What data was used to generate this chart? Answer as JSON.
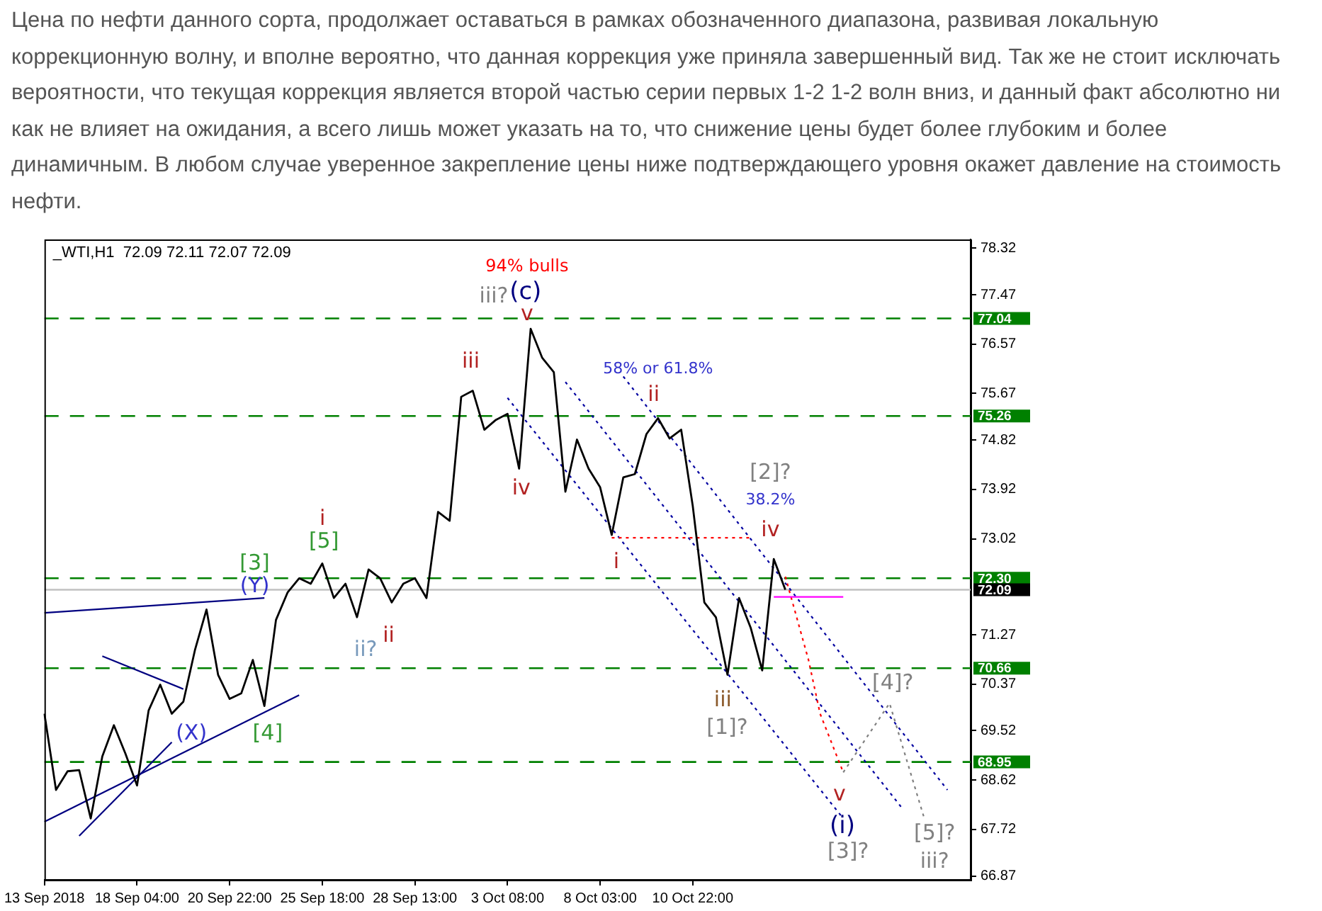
{
  "chart_data": {
    "type": "line",
    "subtitle": "Цена по нефти данного сорта, продолжает оставаться в рамках обозначенного диапазона, развивая локальную коррекционную волну, и вполне вероятно, что данная коррекция уже приняла завершенный вид. Так же не стоит исключать вероятности, что текущая коррекция является второй частью серии первых 1-2 1-2 волн вниз, и данный факт абсолютно ни как не влияет на ожидания, а всего лишь может указать на то, что снижение цены будет более глубоким и более динамичным. В любом случае уверенное закрепление цены ниже подтверждающего уровня окажет давление на стоимость нефти.",
    "title": "_WTI,H1  72.09 72.11 72.07 72.09",
    "categories": [
      "13 Sep 2018",
      null,
      null,
      null,
      null,
      null,
      null,
      null,
      "18 Sep 04:00",
      null,
      null,
      null,
      null,
      null,
      null,
      null,
      "20 Sep 22:00",
      null,
      null,
      null,
      null,
      null,
      null,
      null,
      "25 Sep 18:00",
      null,
      null,
      null,
      null,
      null,
      null,
      null,
      "28 Sep 13:00",
      null,
      null,
      null,
      null,
      null,
      null,
      null,
      "3 Oct 08:00",
      null,
      null,
      null,
      null,
      null,
      null,
      null,
      "8 Oct 03:00",
      null,
      null,
      null,
      null,
      null,
      null,
      null,
      "10 Oct 22:00",
      null,
      null,
      null,
      null,
      null,
      null,
      null,
      null,
      null,
      null,
      null,
      null,
      null,
      null,
      null,
      null,
      null,
      null,
      null,
      null,
      null,
      null,
      null,
      null
    ],
    "ylim": [
      66.8,
      78.48
    ],
    "yticks": [
      78.32,
      77.47,
      76.57,
      75.67,
      74.82,
      73.92,
      73.02,
      71.27,
      70.37,
      69.52,
      68.62,
      67.72,
      66.87
    ],
    "grid": false,
    "legend": false,
    "marker": "none",
    "line_style": "solid",
    "series": [
      {
        "color": "#000000",
        "values": [
          69.83,
          68.44,
          68.78,
          68.8,
          67.92,
          69.05,
          69.62,
          69.1,
          68.52,
          69.89,
          70.36,
          69.83,
          70.05,
          70.99,
          71.73,
          70.54,
          70.1,
          70.2,
          70.81,
          69.97,
          71.54,
          72.04,
          72.3,
          72.2,
          72.57,
          71.94,
          72.2,
          71.59,
          72.46,
          72.3,
          71.86,
          72.2,
          72.3,
          71.94,
          73.51,
          73.35,
          75.61,
          75.72,
          75.01,
          75.19,
          75.3,
          74.3,
          76.85,
          76.32,
          76.06,
          73.88,
          74.83,
          74.3,
          73.96,
          73.09,
          74.14,
          74.2,
          74.93,
          75.22,
          74.85,
          75.01,
          73.62,
          71.86,
          71.59,
          70.54,
          71.94,
          71.4,
          70.62,
          72.65,
          72.09,
          null,
          null,
          null,
          null,
          null,
          null,
          null,
          null,
          null,
          null,
          null,
          null,
          null,
          null,
          null,
          null
        ]
      },
      {
        "color": "#ff00ff",
        "values": [
          null,
          null,
          null,
          null,
          null,
          null,
          null,
          null,
          null,
          null,
          null,
          null,
          null,
          null,
          null,
          null,
          null,
          null,
          null,
          null,
          null,
          null,
          null,
          null,
          null,
          null,
          null,
          null,
          null,
          null,
          null,
          null,
          null,
          null,
          null,
          null,
          null,
          null,
          null,
          null,
          null,
          null,
          null,
          null,
          null,
          null,
          null,
          null,
          null,
          null,
          null,
          null,
          null,
          null,
          null,
          null,
          null,
          null,
          null,
          null,
          null,
          null,
          null,
          71.96,
          null,
          null,
          null,
          null,
          null,
          71.96,
          null,
          null,
          null,
          null,
          null,
          null,
          null,
          null,
          null,
          null,
          null
        ]
      },
      {
        "color": "#ff0000",
        "line_style": "dotted",
        "values": [
          null,
          null,
          null,
          null,
          null,
          null,
          null,
          null,
          null,
          null,
          null,
          null,
          null,
          null,
          null,
          null,
          null,
          null,
          null,
          null,
          null,
          null,
          null,
          null,
          null,
          null,
          null,
          null,
          null,
          null,
          null,
          null,
          null,
          null,
          null,
          null,
          null,
          null,
          null,
          null,
          null,
          null,
          null,
          null,
          null,
          null,
          null,
          null,
          null,
          73.04,
          null,
          null,
          null,
          null,
          null,
          null,
          null,
          null,
          null,
          null,
          null,
          73.04,
          null,
          null,
          null,
          null,
          null,
          null,
          null,
          null,
          null,
          null,
          null,
          null,
          null,
          null,
          null,
          null,
          null,
          null,
          null
        ]
      },
      {
        "color": "#ff0000",
        "line_style": "dotted",
        "values": [
          null,
          null,
          null,
          null,
          null,
          null,
          null,
          null,
          null,
          null,
          null,
          null,
          null,
          null,
          null,
          null,
          null,
          null,
          null,
          null,
          null,
          null,
          null,
          null,
          null,
          null,
          null,
          null,
          null,
          null,
          null,
          null,
          null,
          null,
          null,
          null,
          null,
          null,
          null,
          null,
          null,
          null,
          null,
          null,
          null,
          null,
          null,
          null,
          null,
          null,
          null,
          null,
          null,
          null,
          null,
          null,
          null,
          null,
          null,
          null,
          null,
          null,
          null,
          null,
          72.33,
          null,
          70.81,
          69.83,
          null,
          68.76,
          null,
          null,
          null,
          null,
          null,
          null,
          null,
          null,
          null,
          null,
          null
        ]
      },
      {
        "color": "#808080",
        "line_style": "dotted",
        "values": [
          null,
          null,
          null,
          null,
          null,
          null,
          null,
          null,
          null,
          null,
          null,
          null,
          null,
          null,
          null,
          null,
          null,
          null,
          null,
          null,
          null,
          null,
          null,
          null,
          null,
          null,
          null,
          null,
          null,
          null,
          null,
          null,
          null,
          null,
          null,
          null,
          null,
          null,
          null,
          null,
          null,
          null,
          null,
          null,
          null,
          null,
          null,
          null,
          null,
          null,
          null,
          null,
          null,
          null,
          null,
          null,
          null,
          null,
          null,
          null,
          null,
          null,
          null,
          null,
          null,
          null,
          null,
          null,
          null,
          68.76,
          null,
          null,
          null,
          70.02,
          null,
          null,
          67.92,
          null,
          null,
          null,
          null
        ]
      },
      {
        "color": "#0000a0",
        "line_style": "dotted",
        "values": [
          null,
          null,
          null,
          null,
          null,
          null,
          null,
          null,
          null,
          null,
          null,
          null,
          null,
          null,
          null,
          null,
          null,
          null,
          null,
          null,
          null,
          null,
          null,
          null,
          null,
          null,
          null,
          null,
          null,
          null,
          null,
          null,
          null,
          null,
          null,
          null,
          null,
          null,
          null,
          null,
          75.59,
          null,
          null,
          null,
          null,
          null,
          null,
          null,
          null,
          null,
          null,
          null,
          null,
          null,
          null,
          null,
          null,
          null,
          null,
          null,
          null,
          null,
          null,
          null,
          null,
          null,
          null,
          null,
          null,
          67.92,
          null,
          null,
          null,
          null,
          null,
          null,
          null,
          null,
          null,
          null,
          null
        ]
      },
      {
        "color": "#0000a0",
        "line_style": "dotted",
        "values": [
          null,
          null,
          null,
          null,
          null,
          null,
          null,
          null,
          null,
          null,
          null,
          null,
          null,
          null,
          null,
          null,
          null,
          null,
          null,
          null,
          null,
          null,
          null,
          null,
          null,
          null,
          null,
          null,
          null,
          null,
          null,
          null,
          null,
          null,
          null,
          null,
          null,
          null,
          null,
          null,
          null,
          null,
          null,
          null,
          null,
          75.88,
          null,
          null,
          null,
          null,
          null,
          null,
          null,
          null,
          null,
          null,
          null,
          null,
          null,
          null,
          null,
          null,
          null,
          null,
          null,
          null,
          null,
          null,
          null,
          null,
          null,
          null,
          null,
          null,
          68.13,
          null,
          null,
          null,
          null,
          null,
          null
        ]
      },
      {
        "color": "#0000a0",
        "line_style": "dotted",
        "values": [
          null,
          null,
          null,
          null,
          null,
          null,
          null,
          null,
          null,
          null,
          null,
          null,
          null,
          null,
          null,
          null,
          null,
          null,
          null,
          null,
          null,
          null,
          null,
          null,
          null,
          null,
          null,
          null,
          null,
          null,
          null,
          null,
          null,
          null,
          null,
          null,
          null,
          null,
          null,
          null,
          null,
          null,
          null,
          null,
          null,
          null,
          null,
          null,
          null,
          null,
          75.98,
          null,
          null,
          null,
          null,
          null,
          null,
          null,
          null,
          null,
          null,
          null,
          null,
          null,
          null,
          null,
          null,
          null,
          null,
          null,
          null,
          null,
          null,
          null,
          null,
          null,
          null,
          null,
          68.44,
          null,
          null
        ]
      },
      {
        "color": "#000080",
        "values": [
          71.67,
          null,
          null,
          null,
          null,
          null,
          null,
          null,
          null,
          null,
          null,
          null,
          null,
          null,
          null,
          null,
          null,
          null,
          null,
          71.94,
          null,
          null,
          null,
          null,
          null,
          null,
          null,
          null,
          null,
          null,
          null,
          null,
          null,
          null,
          null,
          null,
          null,
          null,
          null,
          null,
          null,
          null,
          null,
          null,
          null,
          null,
          null,
          null,
          null,
          null,
          null,
          null,
          null,
          null,
          null,
          null,
          null,
          null,
          null,
          null,
          null,
          null,
          null,
          null,
          null,
          null,
          null,
          null,
          null,
          null,
          null,
          null,
          null,
          null,
          null,
          null,
          null,
          null,
          null,
          null,
          null
        ]
      },
      {
        "color": "#000080",
        "values": [
          null,
          null,
          null,
          null,
          null,
          70.88,
          null,
          null,
          null,
          null,
          null,
          null,
          70.28,
          null,
          null,
          null,
          null,
          null,
          null,
          null,
          null,
          null,
          null,
          null,
          null,
          null,
          null,
          null,
          null,
          null,
          null,
          null,
          null,
          null,
          null,
          null,
          null,
          null,
          null,
          null,
          null,
          null,
          null,
          null,
          null,
          null,
          null,
          null,
          null,
          null,
          null,
          null,
          null,
          null,
          null,
          null,
          null,
          null,
          null,
          null,
          null,
          null,
          null,
          null,
          null,
          null,
          null,
          null,
          null,
          null,
          null,
          null,
          null,
          null,
          null,
          null,
          null,
          null,
          null,
          null,
          null
        ]
      },
      {
        "color": "#000080",
        "values": [
          67.86,
          null,
          null,
          null,
          null,
          null,
          null,
          null,
          null,
          null,
          null,
          null,
          null,
          null,
          null,
          null,
          null,
          null,
          null,
          null,
          null,
          null,
          70.17,
          null,
          null,
          null,
          null,
          null,
          null,
          null,
          null,
          null,
          null,
          null,
          null,
          null,
          null,
          null,
          null,
          null,
          null,
          null,
          null,
          null,
          null,
          null,
          null,
          null,
          null,
          null,
          null,
          null,
          null,
          null,
          null,
          null,
          null,
          null,
          null,
          null,
          null,
          null,
          null,
          null,
          null,
          null,
          null,
          null,
          null,
          null,
          null,
          null,
          null,
          null,
          null,
          null,
          null,
          null,
          null,
          null,
          null
        ]
      },
      {
        "color": "#000080",
        "values": [
          null,
          null,
          null,
          67.6,
          null,
          null,
          null,
          null,
          null,
          null,
          null,
          69.31,
          null,
          null,
          null,
          null,
          null,
          null,
          null,
          null,
          null,
          null,
          null,
          null,
          null,
          null,
          null,
          null,
          null,
          null,
          null,
          null,
          null,
          null,
          null,
          null,
          null,
          null,
          null,
          null,
          null,
          null,
          null,
          null,
          null,
          null,
          null,
          null,
          null,
          null,
          null,
          null,
          null,
          null,
          null,
          null,
          null,
          null,
          null,
          null,
          null,
          null,
          null,
          null,
          null,
          null,
          null,
          null,
          null,
          null,
          null,
          null,
          null,
          null,
          null,
          null,
          null,
          null,
          null,
          null,
          null
        ]
      }
    ],
    "ref_lines": [
      {
        "axis": "y",
        "value": 72.09,
        "label": "72.09",
        "color": "#c0c0c0",
        "line_style": "solid"
      },
      {
        "axis": "y",
        "value": 77.04,
        "label": "77.04",
        "color": "#008000",
        "line_style": "dashed"
      },
      {
        "axis": "y",
        "value": 75.26,
        "label": "75.26",
        "color": "#008000",
        "line_style": "dashed"
      },
      {
        "axis": "y",
        "value": 72.3,
        "label": "72.30",
        "color": "#008000",
        "line_style": "dashed"
      },
      {
        "axis": "y",
        "value": 70.66,
        "label": "70.66",
        "color": "#008000",
        "line_style": "dashed"
      },
      {
        "axis": "y",
        "value": 68.95,
        "label": "68.95",
        "color": "#008000",
        "line_style": "dashed"
      }
    ],
    "annotations": [
      "94% bulls",
      "(c)",
      "iii?",
      "v",
      "iii",
      "iv",
      "58% or 61.8%",
      "ii",
      "[2]?",
      "38.2%",
      "iv",
      "i",
      "iii",
      "[1]?",
      "[4]?",
      "v",
      "(i)",
      "[3]?",
      "[5]?",
      "iii?",
      "i",
      "[5]",
      "[3]",
      "(Y)",
      "ii?",
      "ii",
      "[4]",
      "(X)"
    ]
  }
}
